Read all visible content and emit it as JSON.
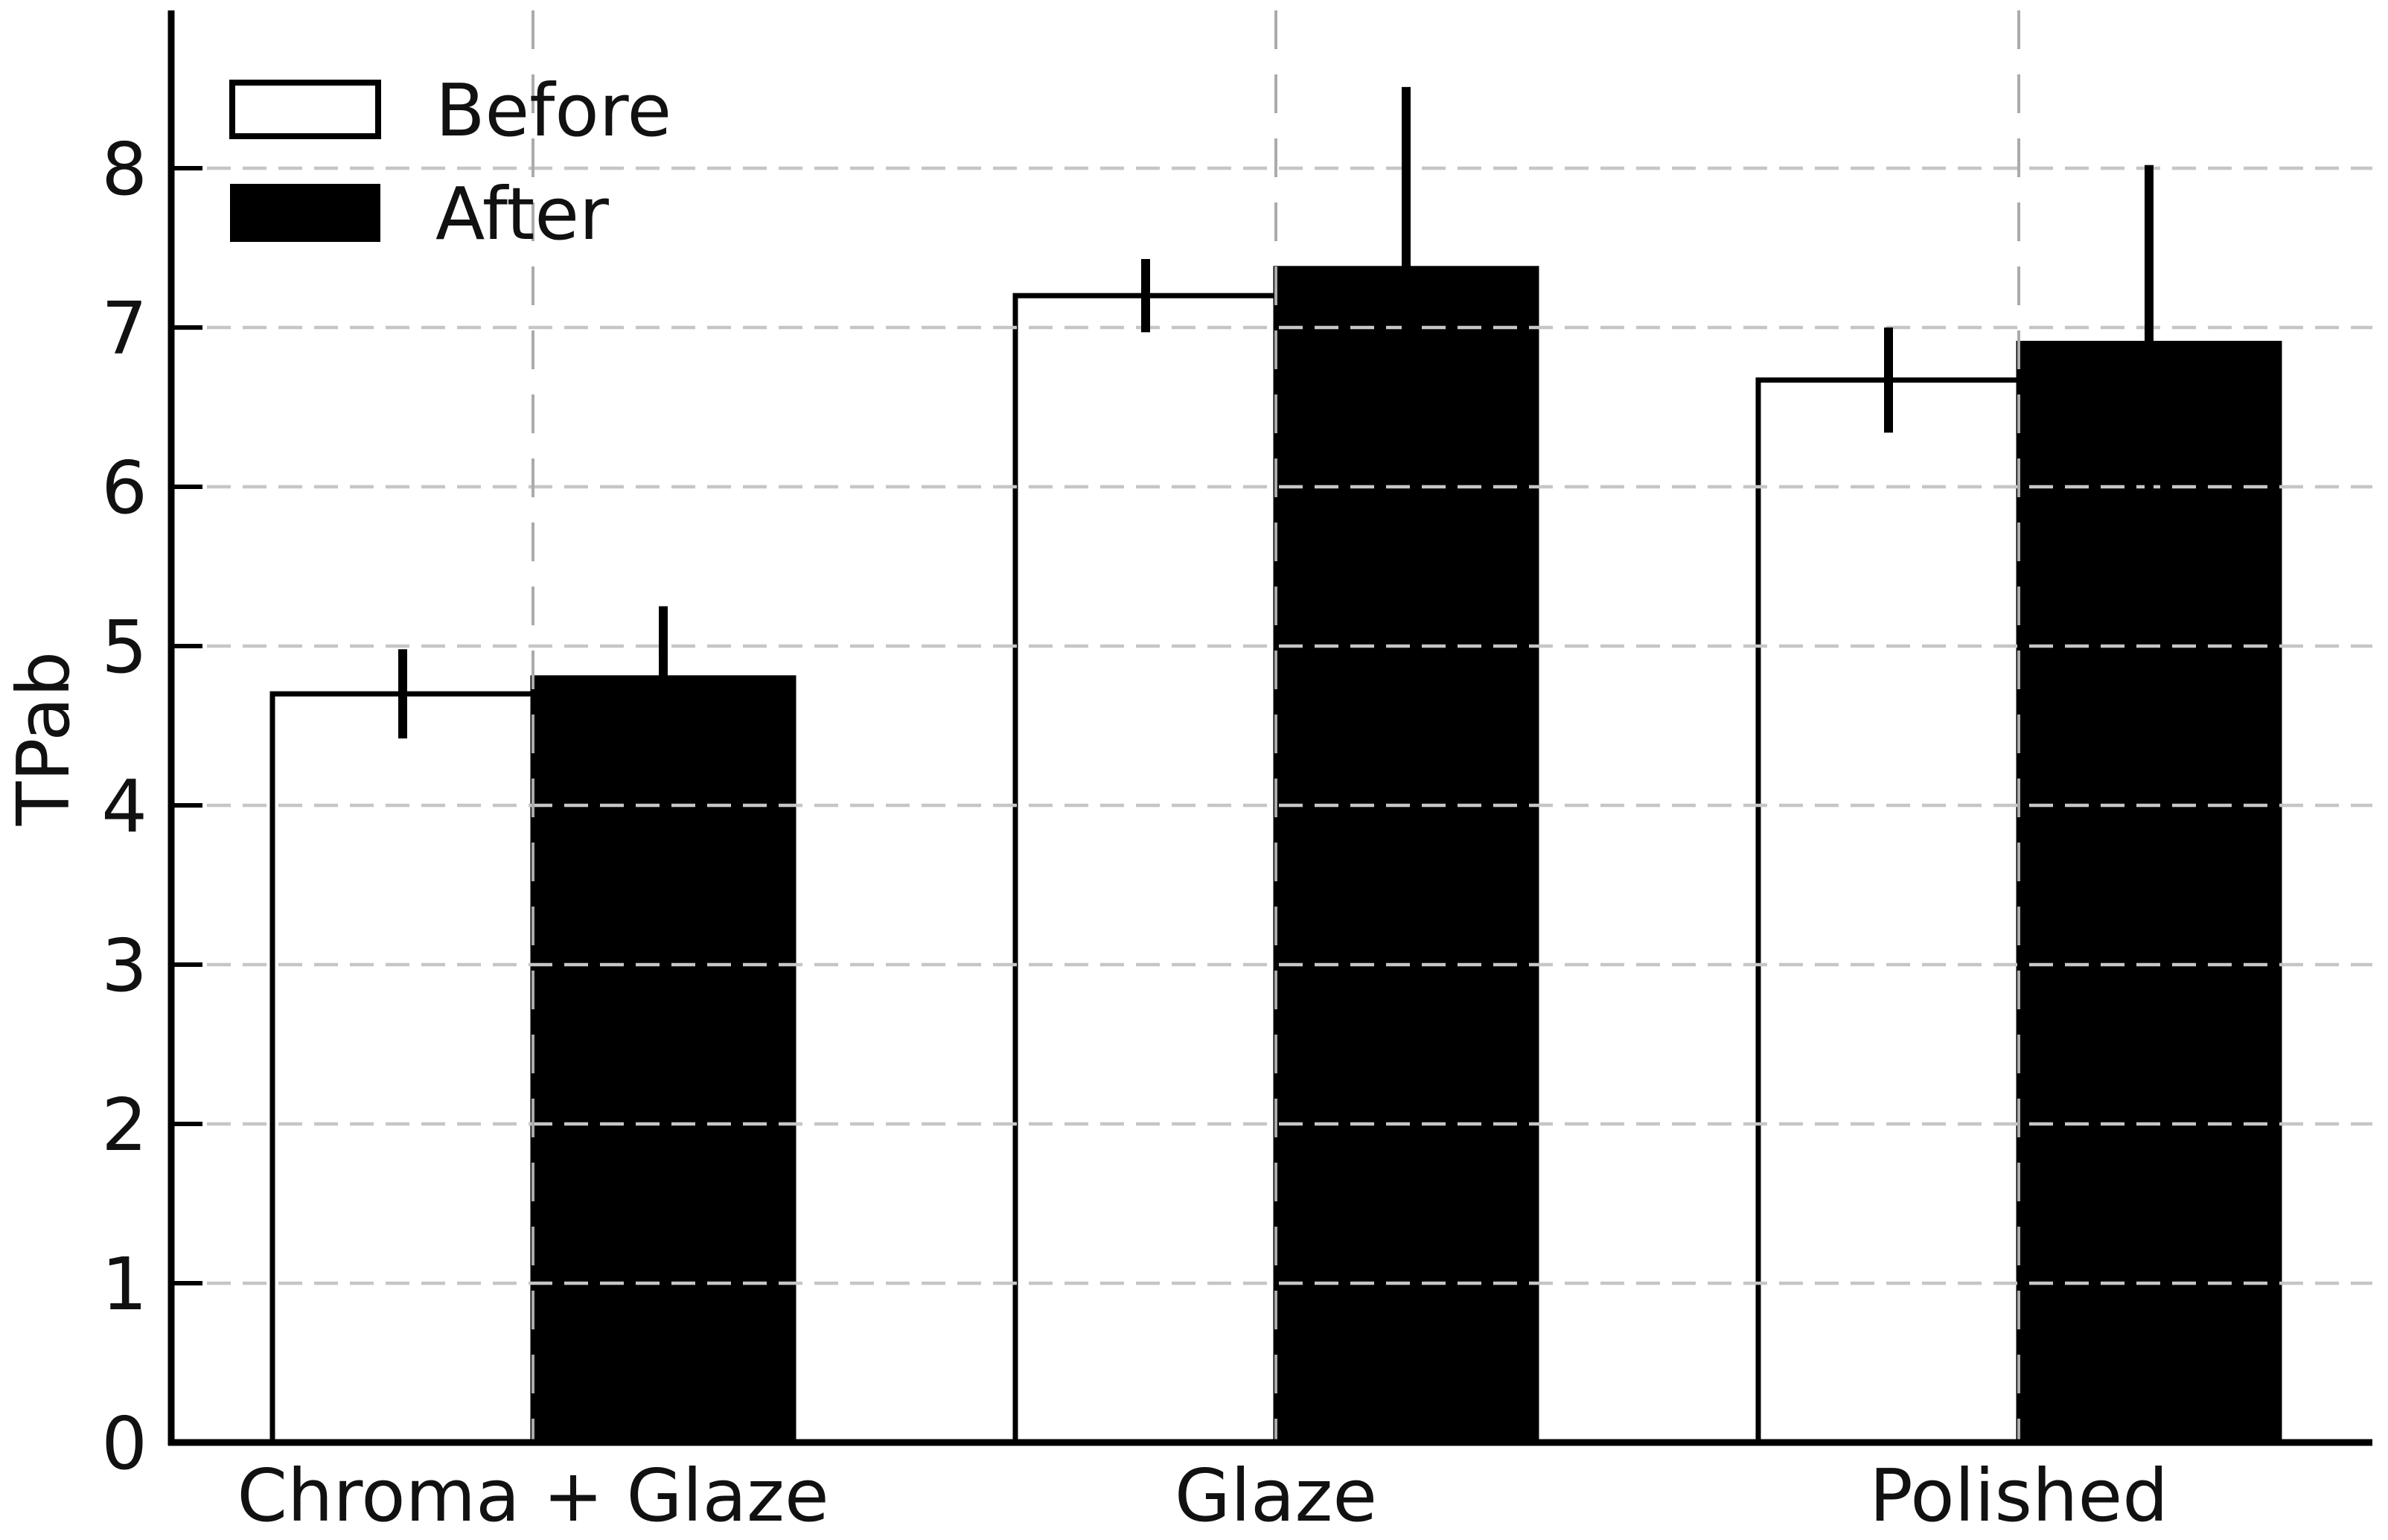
{
  "figure": {
    "background": "#ffffff"
  },
  "chart_data": {
    "type": "bar",
    "title": "",
    "categories": [
      "Chroma + Glaze",
      "Glaze",
      "Polished"
    ],
    "series": [
      {
        "name": "Before",
        "values": [
          4.7,
          7.2,
          6.67
        ],
        "errors": [
          0.28,
          0.23,
          0.33
        ],
        "fill": "#ffffff",
        "edge": "#000000"
      },
      {
        "name": "After",
        "values": [
          4.8,
          7.37,
          6.9
        ],
        "errors": [
          0.45,
          1.14,
          1.12
        ],
        "fill": "#000000",
        "edge": "#000000"
      }
    ],
    "xlabel": "",
    "ylabel": "TPab",
    "yticks": [
      0,
      1,
      2,
      3,
      4,
      5,
      6,
      7,
      8
    ],
    "ylim": [
      0,
      9
    ],
    "bar_group_layout": {
      "bars_per_group": 2,
      "gap_between_groups": true
    },
    "grid": {
      "horizontal": true,
      "vertical": true,
      "h_color": "#c6c6c6",
      "v_color": "#ababab",
      "style": "dashed"
    },
    "error_bars": {
      "color": "#000000",
      "caps": false,
      "upper_only_visible_on_after": true
    },
    "legend": {
      "position": "upper-left",
      "frame": false
    },
    "colors": {
      "axis": "#000000",
      "text": "#111111",
      "background": "#ffffff"
    }
  }
}
